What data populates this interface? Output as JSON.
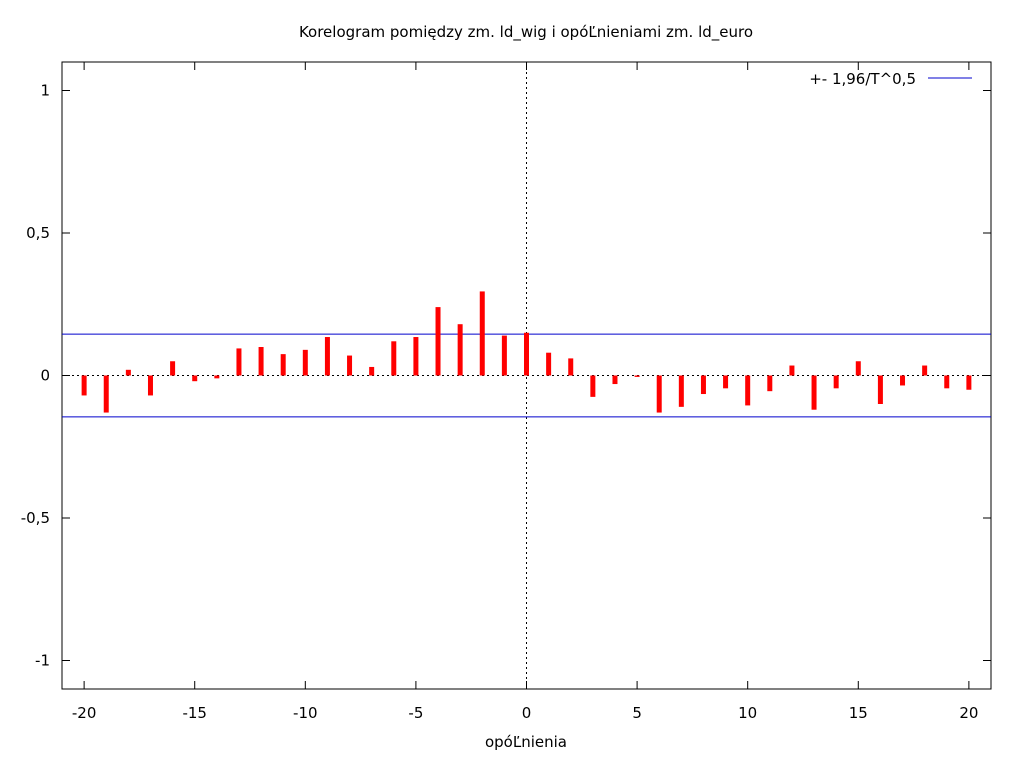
{
  "chart_data": {
    "type": "bar",
    "title": "Korelogram pomiędzy zm. ld_wig i opóĽnieniami zm. ld_euro",
    "xlabel": "opóĽnienia",
    "ylabel": "",
    "xlim": [
      -21,
      21
    ],
    "ylim": [
      -1.1,
      1.1
    ],
    "xticks": [
      -20,
      -15,
      -10,
      -5,
      0,
      5,
      10,
      15,
      20
    ],
    "xtick_labels": [
      "-20",
      "-15",
      "-10",
      "-5",
      "0",
      "5",
      "10",
      "15",
      "20"
    ],
    "yticks": [
      -1,
      -0.5,
      0,
      0.5,
      1
    ],
    "ytick_labels": [
      "-1",
      "-0,5",
      "0",
      "0,5",
      "1"
    ],
    "lags": [
      -20,
      -19,
      -18,
      -17,
      -16,
      -15,
      -14,
      -13,
      -12,
      -11,
      -10,
      -9,
      -8,
      -7,
      -6,
      -5,
      -4,
      -3,
      -2,
      -1,
      0,
      1,
      2,
      3,
      4,
      5,
      6,
      7,
      8,
      9,
      10,
      11,
      12,
      13,
      14,
      15,
      16,
      17,
      18,
      19,
      20
    ],
    "values": [
      -0.07,
      -0.13,
      0.02,
      -0.07,
      0.05,
      -0.02,
      -0.01,
      0.095,
      0.1,
      0.075,
      0.09,
      0.135,
      0.07,
      0.03,
      0.12,
      0.135,
      0.24,
      0.18,
      0.295,
      0.14,
      0.15,
      0.08,
      0.06,
      -0.075,
      -0.03,
      -0.005,
      -0.13,
      -0.11,
      -0.065,
      -0.045,
      -0.105,
      -0.055,
      0.035,
      -0.12,
      -0.045,
      0.05,
      -0.1,
      -0.035,
      0.035,
      -0.045,
      -0.05
    ],
    "bar_color": "#ff0000",
    "confidence_band": 0.145,
    "confidence_color": "#0000cc",
    "legend": {
      "label": "+- 1,96/T^0,5",
      "position": "top-right"
    },
    "zero_line": "dotted",
    "vertical_zero_line": "dotted",
    "grid": false
  }
}
